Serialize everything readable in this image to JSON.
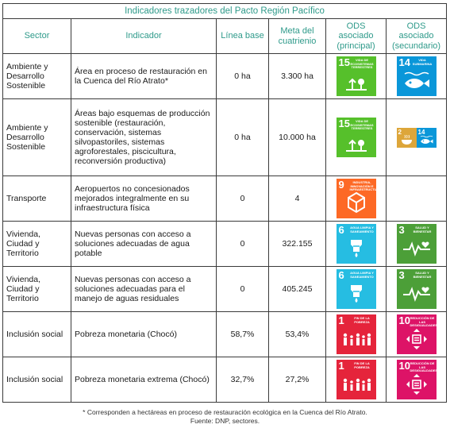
{
  "table_title": "Indicadores trazadores del Pacto Región Pacífico",
  "headers": {
    "sector": "Sector",
    "indicador": "Indicador",
    "linea_base": "Línea base",
    "meta": "Meta del cuatrienio",
    "ods_principal": "ODS asociado (principal)",
    "ods_secundario": "ODS asociado (secundario)"
  },
  "rows": [
    {
      "sector": "Ambiente y Desarrollo Sostenible",
      "indicador": "Área en proceso de restauración en la Cuenca del Río Atrato*",
      "linea_base": "0 ha",
      "meta": "3.300 ha"
    },
    {
      "sector": "Ambiente y Desarrollo Sostenible",
      "indicador": "Áreas bajo esquemas de producción sostenible (restauración, conservación, sistemas silvopastoriles, sistemas agroforestales, piscicultura, reconversión productiva)",
      "linea_base": "0 ha",
      "meta": "10.000 ha"
    },
    {
      "sector": "Transporte",
      "indicador": "Aeropuertos no concesionados mejorados integralmente en su infraestructura física",
      "linea_base": "0",
      "meta": "4"
    },
    {
      "sector": "Vivienda, Ciudad y Territorio",
      "indicador": "Nuevas personas con acceso a soluciones adecuadas de agua potable",
      "linea_base": "0",
      "meta": "322.155"
    },
    {
      "sector": "Vivienda, Ciudad y Territorio",
      "indicador": "Nuevas personas con acceso a soluciones adecuadas para el manejo de aguas residuales",
      "linea_base": "0",
      "meta": "405.245"
    },
    {
      "sector": "Inclusión social",
      "indicador": "Pobreza monetaria (Chocó)",
      "linea_base": "58,7%",
      "meta": "53,4%"
    },
    {
      "sector": "Inclusión social",
      "indicador": "Pobreza monetaria extrema (Chocó)",
      "linea_base": "32,7%",
      "meta": "27,2%"
    }
  ],
  "sdg": {
    "s15": {
      "num": "15",
      "label": "Vida de ecosistemas terrestres",
      "color": "#56c02b"
    },
    "s14": {
      "num": "14",
      "label": "Vida submarina",
      "color": "#0a97d9"
    },
    "s2": {
      "num": "2",
      "label": "Hambre cero",
      "color": "#dda63a"
    },
    "s9": {
      "num": "9",
      "label": "Industria, innovación e infraestructura",
      "color": "#fd6925"
    },
    "s6": {
      "num": "6",
      "label": "Agua limpia y saneamiento",
      "color": "#26bde2"
    },
    "s3": {
      "num": "3",
      "label": "Salud y bienestar",
      "color": "#4c9f38"
    },
    "s1": {
      "num": "1",
      "label": "Fin de la pobreza",
      "color": "#e5243b"
    },
    "s10": {
      "num": "10",
      "label": "Reducción de las desigualdades",
      "color": "#dd1367"
    }
  },
  "footnote": "* Corresponden a hectáreas en proceso de restauración ecológica en la Cuenca del Río Atrato.",
  "source": "Fuente: DNP, sectores."
}
